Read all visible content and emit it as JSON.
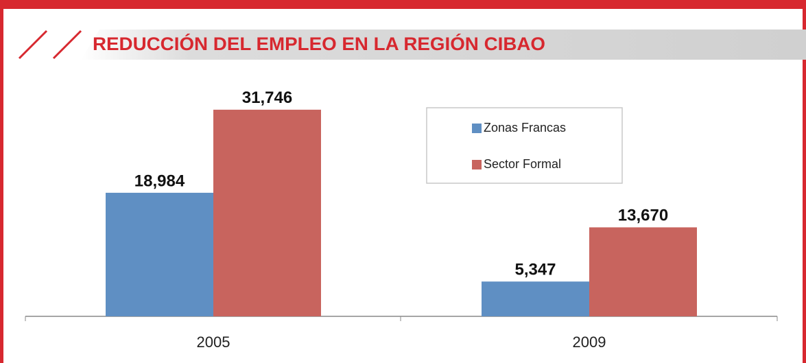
{
  "chart_data": {
    "type": "bar",
    "title": "REDUCCIÓN DEL EMPLEO EN LA REGIÓN CIBAO",
    "categories": [
      "2005",
      "2009"
    ],
    "series": [
      {
        "name": "Zonas Francas",
        "color": "#5f8fc3",
        "values": [
          18984,
          5347
        ],
        "value_labels": [
          "18,984",
          "5,347"
        ]
      },
      {
        "name": "Sector Formal",
        "color": "#c8645e",
        "values": [
          31746,
          13670
        ],
        "value_labels": [
          "31,746",
          "13,670"
        ]
      }
    ],
    "ylim": [
      0,
      35000
    ],
    "legend": "upper right"
  }
}
